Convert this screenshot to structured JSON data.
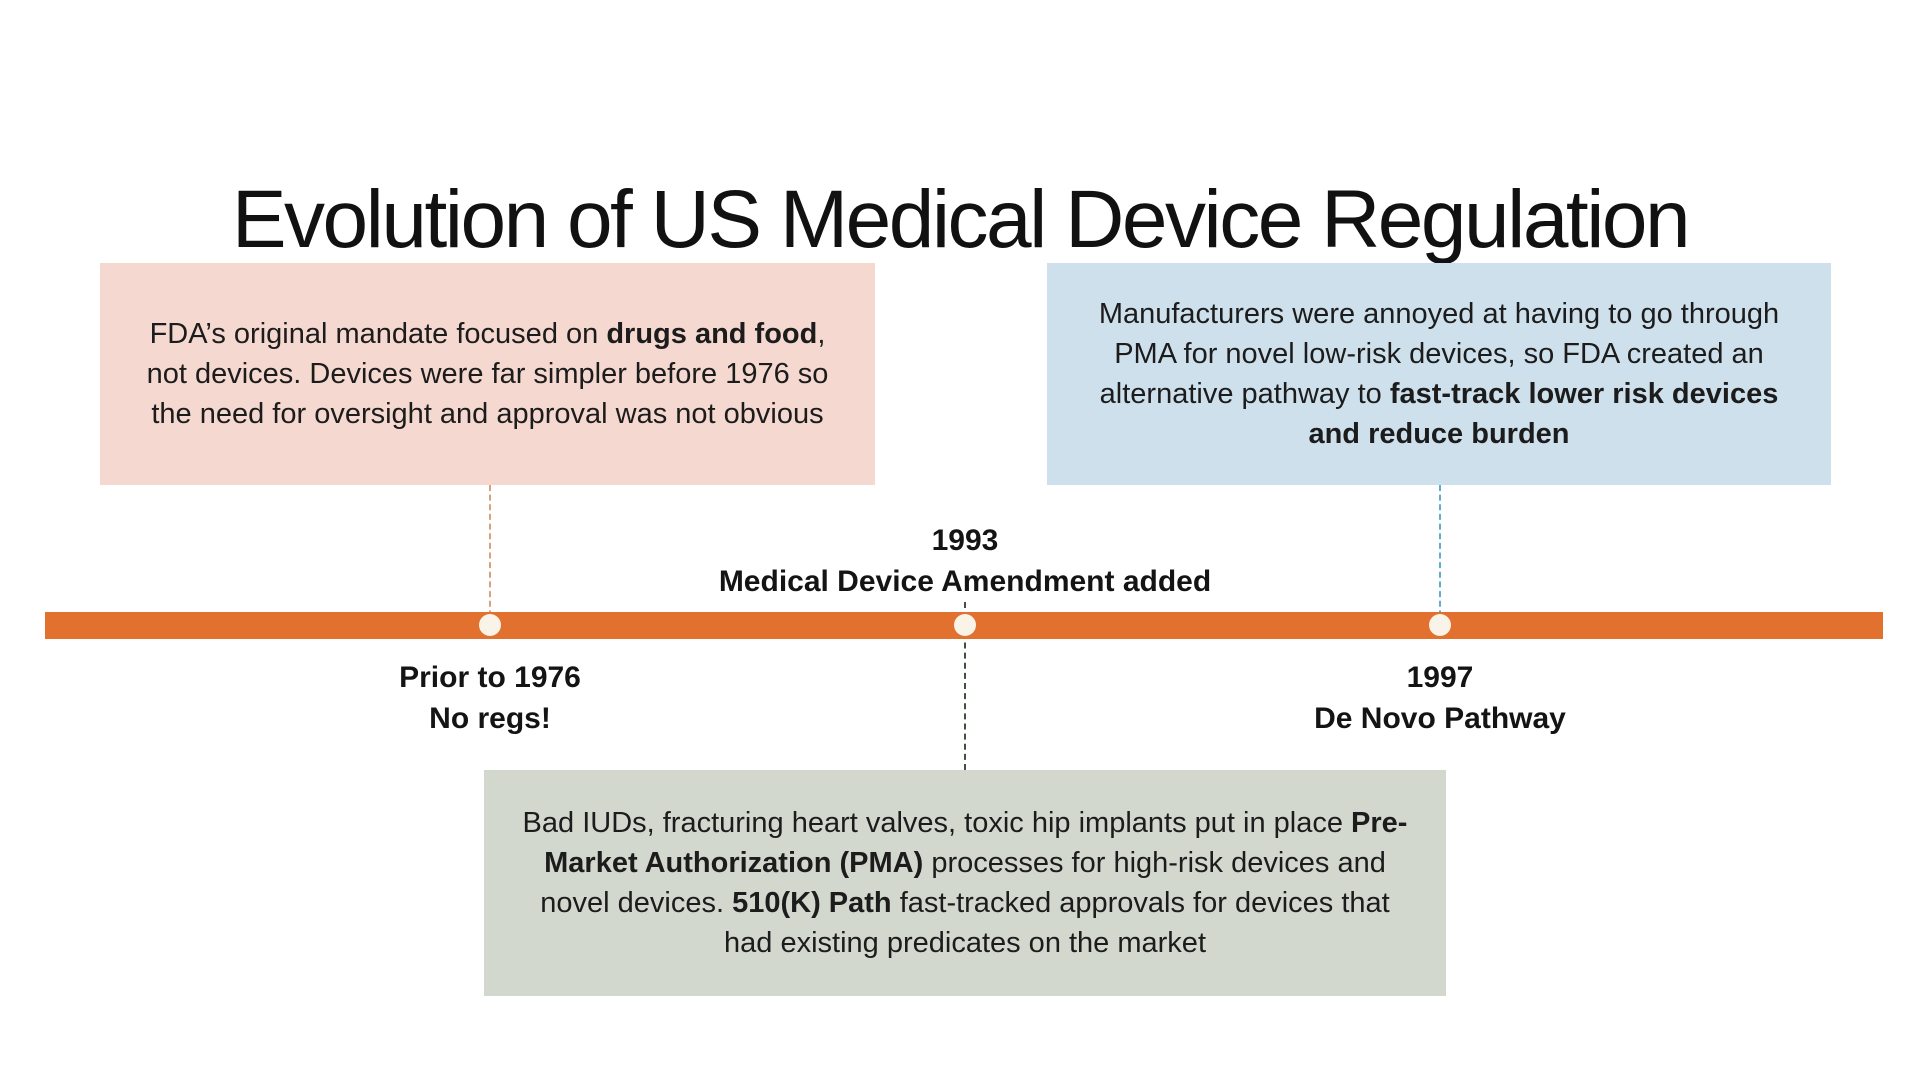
{
  "title": "Evolution of US Medical Device Regulation",
  "colors": {
    "timeline_bar": "#E2702E",
    "dot_fill": "#FAF3E8",
    "pink_box_bg": "#F5D9D1",
    "blue_box_bg": "#CFE0ED",
    "green_box_bg": "#D3D8CF",
    "connector_pre1976": "#D9A27D",
    "connector_1993": "#40523F",
    "connector_1997": "#5FAECB",
    "text": "#171717"
  },
  "timeline": {
    "events": [
      {
        "id": "pre1976",
        "label_line1": "Prior to 1976",
        "label_line2": "No regs!",
        "label_position": "below-bar",
        "note_position": "above-bar",
        "note_segments": [
          {
            "text": "FDA’s original mandate focused on ",
            "bold": false
          },
          {
            "text": "drugs and food",
            "bold": true
          },
          {
            "text": ", not devices. Devices were far simpler before 1976 so the need for oversight and approval was not obvious",
            "bold": false
          }
        ]
      },
      {
        "id": "1993",
        "label_line1": "1993",
        "label_line2": "Medical Device Amendment added",
        "label_position": "above-bar",
        "note_position": "below-bar",
        "note_segments": [
          {
            "text": "Bad IUDs, fracturing heart valves, toxic hip implants put in place ",
            "bold": false
          },
          {
            "text": "Pre-Market Authorization (PMA)",
            "bold": true
          },
          {
            "text": " processes for high-risk devices and novel devices. ",
            "bold": false
          },
          {
            "text": "510(K) Path",
            "bold": true
          },
          {
            "text": " fast-tracked approvals for devices that had existing predicates on the market",
            "bold": false
          }
        ]
      },
      {
        "id": "1997",
        "label_line1": "1997",
        "label_line2": "De Novo Pathway",
        "label_position": "below-bar",
        "note_position": "above-bar",
        "note_segments": [
          {
            "text": "Manufacturers were annoyed at having to go through PMA for novel low-risk devices, so FDA created an alternative pathway to ",
            "bold": false
          },
          {
            "text": " fast-track lower risk devices and reduce burden",
            "bold": true
          }
        ]
      }
    ]
  }
}
